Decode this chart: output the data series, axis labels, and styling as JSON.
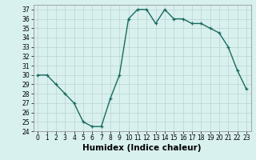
{
  "x": [
    0,
    1,
    2,
    3,
    4,
    5,
    6,
    7,
    8,
    9,
    10,
    11,
    12,
    13,
    14,
    15,
    16,
    17,
    18,
    19,
    20,
    21,
    22,
    23
  ],
  "y": [
    30,
    30,
    29,
    28,
    27,
    25,
    24.5,
    24.5,
    27.5,
    30,
    36,
    37,
    37,
    35.5,
    37,
    36,
    36,
    35.5,
    35.5,
    35,
    34.5,
    33,
    30.5,
    28.5
  ],
  "line_color": "#1a6b60",
  "marker": "+",
  "marker_size": 3.5,
  "linewidth": 1.0,
  "xlabel": "Humidex (Indice chaleur)",
  "ylim": [
    24,
    37.5
  ],
  "xlim": [
    -0.5,
    23.5
  ],
  "yticks": [
    24,
    25,
    26,
    27,
    28,
    29,
    30,
    31,
    32,
    33,
    34,
    35,
    36,
    37
  ],
  "xticks": [
    0,
    1,
    2,
    3,
    4,
    5,
    6,
    7,
    8,
    9,
    10,
    11,
    12,
    13,
    14,
    15,
    16,
    17,
    18,
    19,
    20,
    21,
    22,
    23
  ],
  "background_color": "#d8f0ee",
  "grid_color": "#c0d8d5",
  "tick_fontsize": 5.5,
  "xlabel_fontsize": 7.5
}
